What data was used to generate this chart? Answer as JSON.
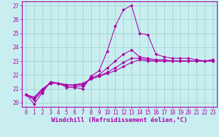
{
  "xlabel": "Windchill (Refroidissement éolien,°C)",
  "background_color": "#c8eef0",
  "line_color": "#aa00aa",
  "grid_color": "#99cccc",
  "xlim": [
    -0.5,
    23.5
  ],
  "ylim": [
    19.7,
    27.3
  ],
  "xticks": [
    0,
    1,
    2,
    3,
    4,
    5,
    6,
    7,
    8,
    9,
    10,
    11,
    12,
    13,
    14,
    15,
    16,
    17,
    18,
    19,
    20,
    21,
    22,
    23
  ],
  "yticks": [
    20,
    21,
    22,
    23,
    24,
    25,
    26,
    27
  ],
  "lines": [
    [
      20.6,
      19.9,
      20.7,
      21.5,
      21.4,
      21.1,
      21.1,
      21.0,
      21.9,
      22.3,
      23.7,
      25.5,
      26.7,
      27.0,
      25.0,
      24.9,
      23.5,
      23.3,
      23.2,
      23.2,
      23.2,
      23.1,
      23.0,
      23.1
    ],
    [
      20.6,
      20.2,
      20.8,
      21.5,
      21.4,
      21.2,
      21.2,
      21.2,
      21.8,
      22.0,
      22.5,
      23.0,
      23.5,
      23.8,
      23.3,
      23.2,
      23.1,
      23.1,
      23.0,
      23.0,
      23.0,
      23.0,
      23.0,
      23.0
    ],
    [
      20.6,
      20.3,
      20.9,
      21.4,
      21.4,
      21.3,
      21.3,
      21.3,
      21.7,
      21.9,
      22.2,
      22.5,
      22.9,
      23.2,
      23.2,
      23.1,
      23.0,
      23.0,
      23.0,
      23.0,
      23.0,
      23.0,
      23.0,
      23.0
    ],
    [
      20.6,
      20.4,
      21.0,
      21.4,
      21.4,
      21.3,
      21.3,
      21.4,
      21.7,
      21.9,
      22.1,
      22.3,
      22.6,
      22.9,
      23.1,
      23.0,
      23.0,
      23.0,
      23.0,
      23.0,
      23.0,
      23.0,
      23.0,
      23.0
    ]
  ],
  "marker": "D",
  "markersize": 2.0,
  "linewidth": 0.8,
  "xlabel_fontsize": 6.5,
  "tick_fontsize": 5.5
}
